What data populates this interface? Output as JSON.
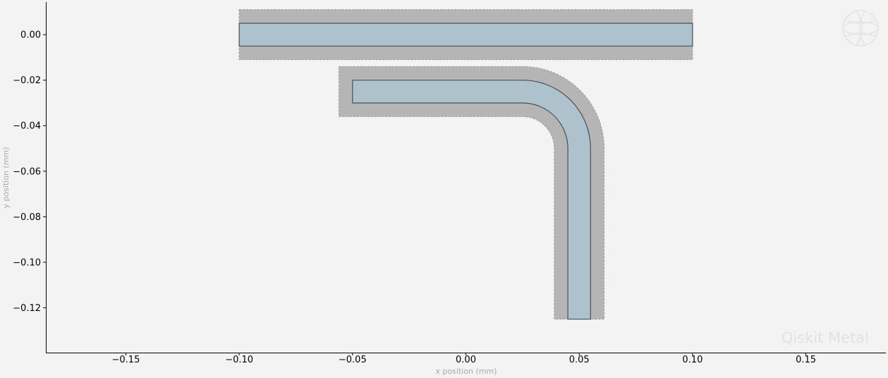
{
  "colors": {
    "background": "#f3f3f3",
    "metal_fill": "#adc2cd",
    "metal_edge": "#4a4f55",
    "gap_fill": "#b5b5b5",
    "gap_edge": "#9a9a9a",
    "axis": "#000000",
    "axis_label": "#aaaaaa",
    "watermark": "#e2e2e2"
  },
  "watermark": {
    "text": "Qiskit Metal",
    "icon": "globe-logo-icon"
  },
  "chart_data": {
    "type": "layout",
    "xlabel": "x position (mm)",
    "ylabel": "y position (mm)",
    "xlim": [
      -0.1853,
      0.1853
    ],
    "ylim": [
      -0.1397,
      0.0143
    ],
    "grid": false,
    "xticks": [
      -0.15,
      -0.1,
      -0.05,
      0.0,
      0.05,
      0.1,
      0.15
    ],
    "xtick_labels": [
      "−0.15",
      "−0.10",
      "−0.05",
      "0.00",
      "0.05",
      "0.10",
      "0.15"
    ],
    "yticks": [
      0.0,
      -0.02,
      -0.04,
      -0.06,
      -0.08,
      -0.1,
      -0.12
    ],
    "ytick_labels": [
      "0.00",
      "−0.02",
      "−0.04",
      "−0.06",
      "−0.08",
      "−0.10",
      "−0.12"
    ],
    "shapes": [
      {
        "name": "straight-trace",
        "kind": "straight",
        "start": [
          -0.1,
          0.0
        ],
        "end": [
          0.1,
          0.0
        ],
        "trace_width": 0.01,
        "gap": 0.006
      },
      {
        "name": "bent-trace",
        "kind": "bend",
        "start": [
          -0.05,
          -0.025
        ],
        "corner": [
          0.05,
          -0.025
        ],
        "end": [
          0.05,
          -0.125
        ],
        "bend_radius": 0.025,
        "trace_width": 0.01,
        "gap": 0.006
      }
    ]
  }
}
